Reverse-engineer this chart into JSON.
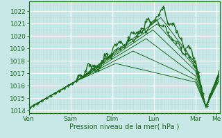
{
  "xlabel": "Pression niveau de la mer( hPa )",
  "bg_color": "#c8e8e8",
  "plot_bg_color": "#c8e8e8",
  "grid_major_color": "#ffffff",
  "grid_minor_color": "#b8dede",
  "line_color": "#1a6b1a",
  "ylim": [
    1013.8,
    1022.8
  ],
  "yticks": [
    1014,
    1015,
    1016,
    1017,
    1018,
    1019,
    1020,
    1021,
    1022
  ],
  "day_labels": [
    "Ven",
    "Sam",
    "Dim",
    "Lun",
    "Mar",
    "Me"
  ],
  "day_positions": [
    0,
    48,
    96,
    144,
    192,
    216
  ],
  "xlim": [
    0,
    220
  ],
  "num_points": 220
}
